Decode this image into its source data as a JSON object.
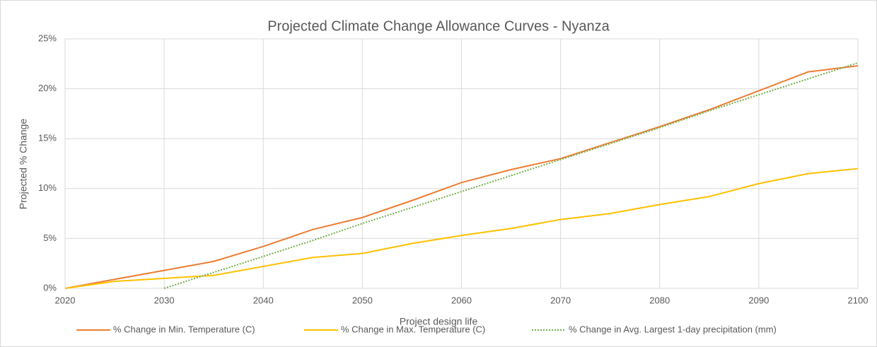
{
  "chart_data": {
    "type": "line",
    "title": "Projected Climate Change Allowance Curves - Nyanza",
    "x_label": "Project design life",
    "y_label": "Projected % Change",
    "x": [
      2020,
      2025,
      2030,
      2035,
      2040,
      2045,
      2050,
      2055,
      2060,
      2065,
      2070,
      2075,
      2080,
      2085,
      2090,
      2095,
      2100
    ],
    "series": [
      {
        "name": "% Change in Min. Temperature (C)",
        "color": "#ed7d31",
        "style": "solid",
        "values": [
          0,
          0.9,
          1.8,
          2.7,
          4.2,
          5.9,
          7.1,
          8.8,
          10.6,
          11.9,
          13.0,
          14.6,
          16.2,
          17.9,
          19.8,
          21.7,
          22.3
        ]
      },
      {
        "name": "% Change in Max. Temperature (C)",
        "color": "#ffc000",
        "style": "solid",
        "values": [
          0,
          0.7,
          1.0,
          1.3,
          2.2,
          3.1,
          3.5,
          4.5,
          5.3,
          6.0,
          6.9,
          7.5,
          8.4,
          9.2,
          10.5,
          11.5,
          12.0
        ]
      },
      {
        "name": "% Change in Avg. Largest 1-day precipitation  (mm)",
        "color": "#70ad47",
        "style": "dotted",
        "values": [
          null,
          null,
          0,
          1.6,
          3.2,
          4.8,
          6.5,
          8.1,
          9.7,
          11.3,
          12.9,
          14.5,
          16.1,
          17.8,
          19.4,
          21.0,
          22.6
        ]
      }
    ],
    "xlim": [
      2020,
      2100
    ],
    "xticks": [
      2020,
      2030,
      2040,
      2050,
      2060,
      2070,
      2080,
      2090,
      2100
    ],
    "ylim": [
      0,
      25
    ],
    "yticks": [
      {
        "value": 0,
        "label": "0%"
      },
      {
        "value": 5,
        "label": "5%"
      },
      {
        "value": 10,
        "label": "10%"
      },
      {
        "value": 15,
        "label": "15%"
      },
      {
        "value": 20,
        "label": "20%"
      },
      {
        "value": 25,
        "label": "25%"
      }
    ],
    "grid": true,
    "legend": "bottom"
  }
}
